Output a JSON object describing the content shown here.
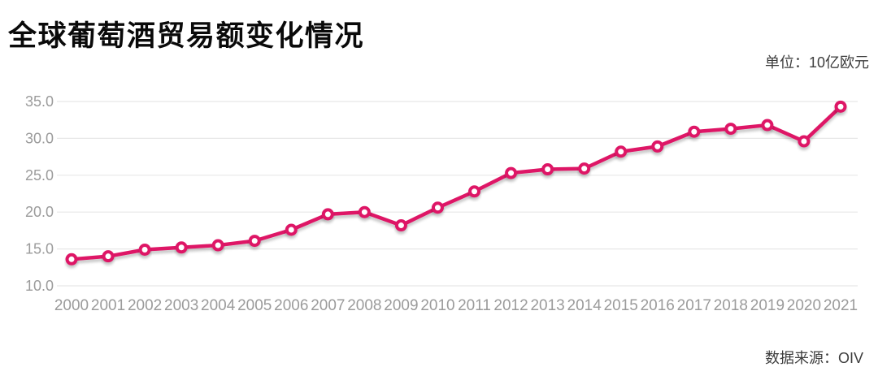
{
  "page": {
    "title": "全球葡萄酒贸易额变化情况",
    "unit_label": "单位：10亿欧元",
    "source_label": "数据来源：OIV"
  },
  "chart_data": {
    "type": "line",
    "title": "全球葡萄酒贸易额变化情况",
    "unit": "10亿欧元",
    "source": "OIV",
    "x": [
      "2000",
      "2001",
      "2002",
      "2003",
      "2004",
      "2005",
      "2006",
      "2007",
      "2008",
      "2009",
      "2010",
      "2011",
      "2012",
      "2013",
      "2014",
      "2015",
      "2016",
      "2017",
      "2018",
      "2019",
      "2020",
      "2021"
    ],
    "series": [
      {
        "name": "全球葡萄酒贸易额",
        "values": [
          13.6,
          14.0,
          14.9,
          15.2,
          15.5,
          16.1,
          17.6,
          19.7,
          20.0,
          18.2,
          20.6,
          22.8,
          25.3,
          25.8,
          25.9,
          28.2,
          28.9,
          30.9,
          31.3,
          31.8,
          29.6,
          34.3
        ]
      }
    ],
    "xlabel": "",
    "ylabel": "",
    "ylim": [
      10.0,
      35.0
    ],
    "y_ticks": [
      35.0,
      30.0,
      25.0,
      20.0,
      15.0,
      10.0
    ],
    "grid": "horizontal",
    "legend": "none",
    "marker": "open-circle",
    "line_color": "#DE1566",
    "marker_fill": "#ffffff",
    "grid_color": "#e7e7e7",
    "axis_text_color": "#9b9b9b"
  }
}
